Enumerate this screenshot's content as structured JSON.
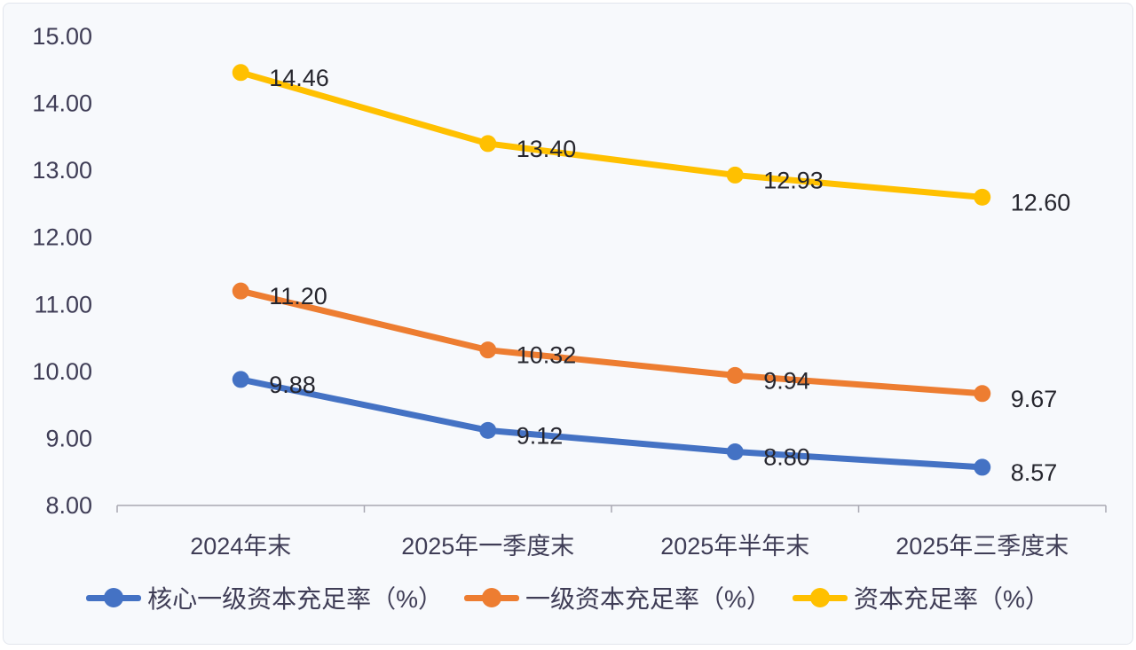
{
  "chart_data": {
    "type": "line",
    "title": "",
    "xlabel": "",
    "ylabel": "",
    "categories": [
      "2024年末",
      "2025年一季度末",
      "2025年半年末",
      "2025年三季度末"
    ],
    "series": [
      {
        "name": "核心一级资本充足率（%）",
        "color": "#4472C4",
        "values": [
          9.88,
          9.12,
          8.8,
          8.57
        ]
      },
      {
        "name": "一级资本充足率（%）",
        "color": "#ED7D31",
        "values": [
          11.2,
          10.32,
          9.94,
          9.67
        ]
      },
      {
        "name": "资本充足率（%）",
        "color": "#FFC000",
        "values": [
          14.46,
          13.4,
          12.93,
          12.6
        ]
      }
    ],
    "y_axis": {
      "min": 8,
      "max": 15,
      "step": 1,
      "tick_labels": [
        "8.00",
        "9.00",
        "10.00",
        "11.00",
        "12.00",
        "13.00",
        "14.00",
        "15.00"
      ]
    },
    "ylim": [
      8,
      15
    ],
    "grid": false,
    "data_labels": true,
    "legend_position": "bottom"
  },
  "colors": {
    "background": "#f7f9fc",
    "axis": "#a8a8b2",
    "tick_text": "#3f3d56",
    "data_label_text": "#26262e",
    "frame_border": "#e2e6ed"
  }
}
